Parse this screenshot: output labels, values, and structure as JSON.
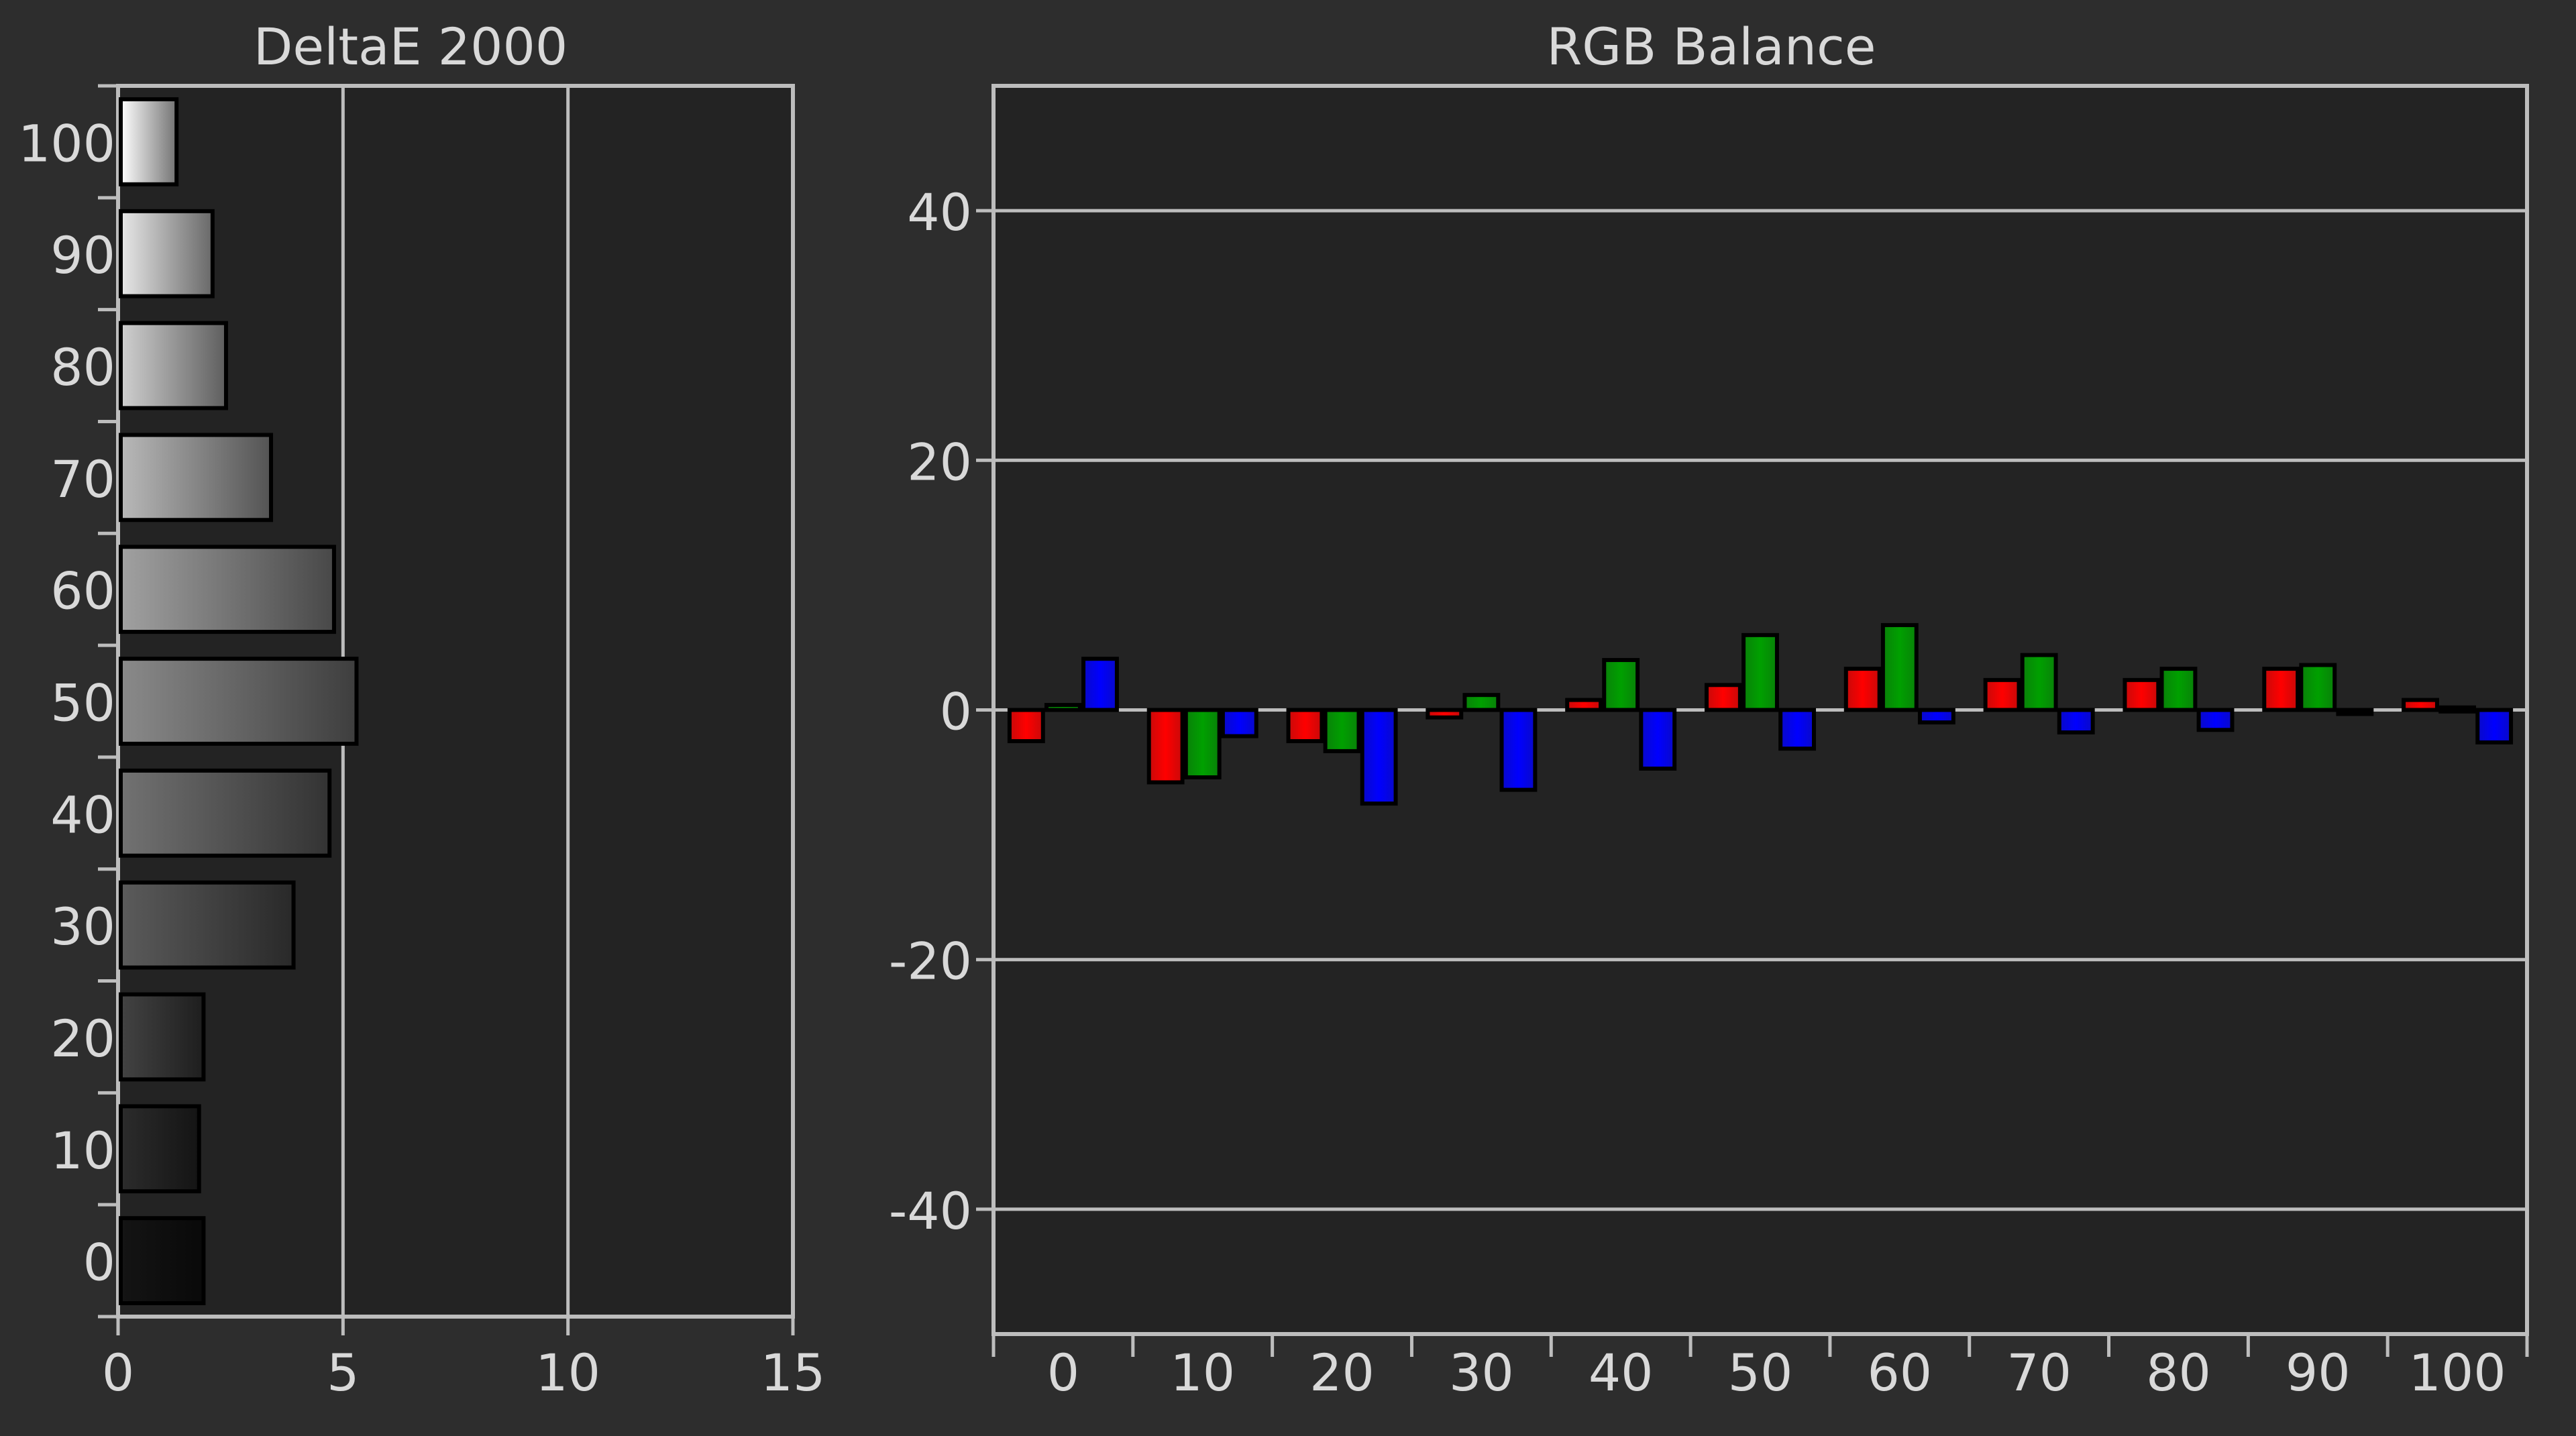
{
  "chart_data": [
    {
      "type": "bar",
      "orientation": "horizontal",
      "title": "DeltaE 2000",
      "categories": [
        "100",
        "90",
        "80",
        "70",
        "60",
        "50",
        "40",
        "30",
        "20",
        "10",
        "0"
      ],
      "values": [
        1.3,
        2.1,
        2.4,
        3.4,
        4.8,
        5.3,
        4.7,
        3.9,
        1.9,
        1.8,
        1.9
      ],
      "x_ticks": [
        "0",
        "5",
        "10",
        "15"
      ],
      "xlim": [
        0,
        15
      ],
      "grid": "vertical gridlines at 5 and 10",
      "bar_fill": "grayscale gradient matching each stimulus level"
    },
    {
      "type": "bar",
      "title": "RGB Balance",
      "categories": [
        "0",
        "10",
        "20",
        "30",
        "40",
        "50",
        "60",
        "70",
        "80",
        "90",
        "100"
      ],
      "series": [
        {
          "color": "#ff0000",
          "values": [
            -2.5,
            -5.8,
            -2.5,
            -0.6,
            0.8,
            2.0,
            3.3,
            2.4,
            2.4,
            3.3,
            0.8
          ]
        },
        {
          "color": "#00a000",
          "values": [
            0.4,
            -5.4,
            -3.3,
            1.2,
            4.0,
            6.0,
            6.8,
            4.4,
            3.3,
            3.6,
            0.2
          ]
        },
        {
          "color": "#0000ff",
          "values": [
            4.1,
            -2.1,
            -7.5,
            -6.4,
            -4.7,
            -3.1,
            -1.0,
            -1.8,
            -1.6,
            -0.2,
            -2.6
          ]
        }
      ],
      "y_ticks": [
        "40",
        "20",
        "0",
        "-20",
        "-40"
      ],
      "ylim": [
        -50,
        50
      ],
      "grid": "horizontal gridlines at -40, -20, 0, 20, 40"
    }
  ]
}
